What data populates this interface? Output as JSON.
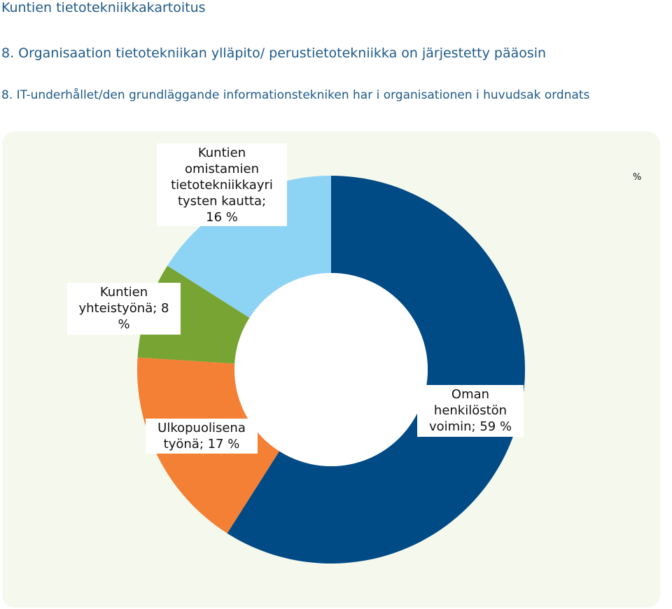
{
  "header": {
    "title": "Kuntien tietotekniikkakartoitus",
    "question_fi": "8. Organisaation tietotekniikan ylläpito/ perustietotekniikka on järjestetty pääosin",
    "question_sv": "8. IT-underhållet/den grundläggande informationstekniken har i organisationen i huvudsak ordnats"
  },
  "chart_data": {
    "type": "pie",
    "subtype": "donut",
    "title": "",
    "legend_text": "%",
    "slices": [
      {
        "label": "Oman henkilöstön voimin; 59 %",
        "name": "Oman henkilöstön voimin",
        "value": 59,
        "color": "#004a85"
      },
      {
        "label": "Ulkopuolisena työnä; 17 %",
        "name": "Ulkopuolisena työnä",
        "value": 17,
        "color": "#f48035"
      },
      {
        "label": "Kuntien yhteistyönä; 8 %",
        "name": "Kuntien yhteistyönä",
        "value": 8,
        "color": "#78a433"
      },
      {
        "label": "Kuntien omistamien tietotekniikkayri tysten kautta; 16 %",
        "name": "Kuntien omistamien tietotekniikkayritysten kautta",
        "value": 16,
        "color": "#8dd3f4"
      }
    ],
    "label_lines": [
      [
        "Oman",
        "henkilöstön",
        "voimin; 59 %"
      ],
      [
        "Ulkopuolisena",
        "työnä; 17 %"
      ],
      [
        "Kuntien",
        "yhteistyönä; 8",
        "%"
      ],
      [
        "Kuntien",
        "omistamien",
        "tietotekniikkayri",
        "tysten kautta;",
        "16 %"
      ]
    ],
    "colors": {
      "panel_background": "#f5f8ec",
      "label_background": "#ffffff"
    }
  }
}
